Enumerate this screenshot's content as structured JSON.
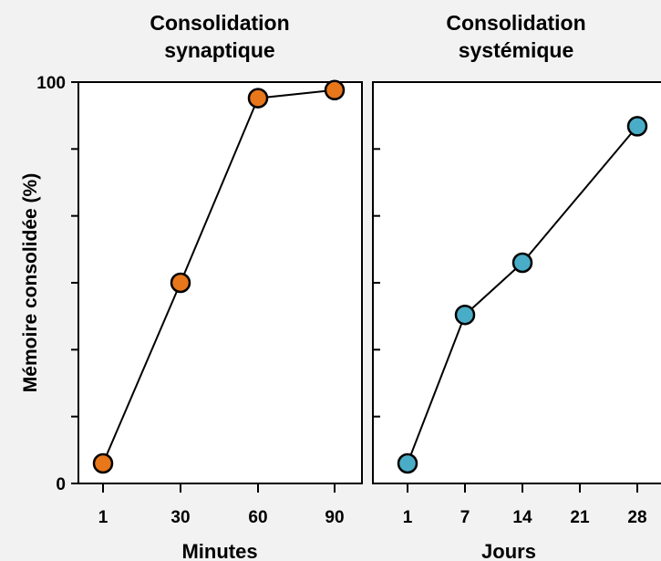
{
  "chart_data": [
    {
      "type": "line",
      "title": [
        "Consolidation",
        "synaptique"
      ],
      "xlabel": "Minutes",
      "ylabel": "Mémoire consolidée (%)",
      "ylim": [
        0,
        100
      ],
      "y_tick_labels": [
        "0",
        "",
        "",
        "",
        "",
        "",
        "100"
      ],
      "x_tick_labels": [
        "1",
        "30",
        "60",
        "90"
      ],
      "categories": [
        "1",
        "30",
        "60",
        "90"
      ],
      "values": [
        5,
        50,
        96,
        98
      ],
      "marker_color": "#e8761a",
      "line_color": "#000000",
      "grid": false
    },
    {
      "type": "line",
      "title": [
        "Consolidation",
        "systémique"
      ],
      "xlabel": "Jours",
      "ylim": [
        0,
        100
      ],
      "x_tick_labels": [
        "1",
        "7",
        "14",
        "21",
        "28"
      ],
      "x": [
        1,
        7,
        14,
        28
      ],
      "values": [
        5,
        42,
        55,
        89
      ],
      "marker_color": "#4aadc8",
      "line_color": "#000000",
      "grid": false
    }
  ]
}
